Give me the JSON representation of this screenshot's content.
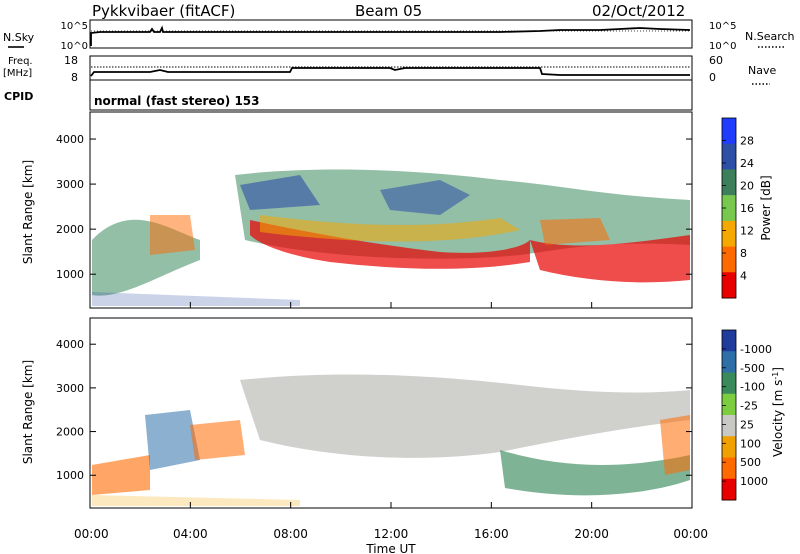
{
  "header": {
    "station": "Pykkvibaer (fitACF)",
    "beam": "Beam 05",
    "date": "02/Oct/2012"
  },
  "status_panels": {
    "nsky_label": "N.Sky",
    "nsky_ticks": [
      "10^5",
      "10^0"
    ],
    "nsearch_label": "N.Search",
    "nsearch_ticks": [
      "10^5",
      "10^0"
    ],
    "freq_label_1": "Freq.",
    "freq_label_2": "[MHz]",
    "freq_ticks": [
      "18",
      "8"
    ],
    "nave_label": "Nave",
    "nave_ticks": [
      "60",
      "0"
    ],
    "cpid_label": "CPID",
    "cpid_text": "normal (fast stereo) 153"
  },
  "chart_data": [
    {
      "type": "heatmap",
      "name": "power",
      "ylabel": "Slant Range [km]",
      "ylim": [
        250,
        4600
      ],
      "yticks": [
        "1000",
        "2000",
        "3000",
        "4000"
      ],
      "colorbar_label": "Power [dB]",
      "colorbar_ticks": [
        "4",
        "8",
        "12",
        "16",
        "20",
        "24",
        "28"
      ],
      "colorbar_colors": [
        "#1f3cff",
        "#2e4fa8",
        "#3c7f5a",
        "#78c850",
        "#f5a800",
        "#ff6a00",
        "#e80000"
      ]
    },
    {
      "type": "heatmap",
      "name": "velocity",
      "ylabel": "Slant Range [km]",
      "ylim": [
        250,
        4600
      ],
      "yticks": [
        "1000",
        "2000",
        "3000",
        "4000"
      ],
      "colorbar_label": "Velocity [m s",
      "colorbar_label_sup": "-1",
      "colorbar_label_end": "]",
      "colorbar_ticks": [
        "1000",
        "500",
        "100",
        "25",
        "-25",
        "-100",
        "-500",
        "-1000"
      ],
      "colorbar_colors": [
        "#1f3c9c",
        "#2e6fa8",
        "#3a8a5c",
        "#7ccd3f",
        "#c8c8c4",
        "#f0a000",
        "#ff6a00",
        "#e80000"
      ]
    }
  ],
  "xaxis": {
    "ticks": [
      "00:00",
      "04:00",
      "08:00",
      "12:00",
      "16:00",
      "20:00",
      "00:00"
    ],
    "label": "Time UT"
  }
}
